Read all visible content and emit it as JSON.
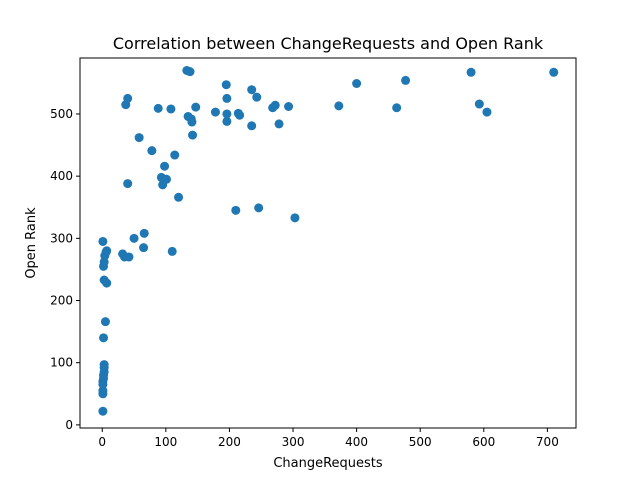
{
  "chart_data": {
    "type": "scatter",
    "title": "Correlation between ChangeRequests and Open Rank",
    "xlabel": "ChangeRequests",
    "ylabel": "Open Rank",
    "xlim": [
      -35,
      745
    ],
    "ylim": [
      -5,
      590
    ],
    "xticks": [
      0,
      100,
      200,
      300,
      400,
      500,
      600,
      700
    ],
    "yticks": [
      0,
      100,
      200,
      300,
      400,
      500
    ],
    "grid": false,
    "marker_color": "#1f77b4",
    "points": [
      [
        1,
        22
      ],
      [
        1,
        50
      ],
      [
        1,
        55
      ],
      [
        1,
        65
      ],
      [
        1,
        70
      ],
      [
        2,
        75
      ],
      [
        2,
        80
      ],
      [
        3,
        85
      ],
      [
        3,
        92
      ],
      [
        3,
        97
      ],
      [
        2,
        140
      ],
      [
        5,
        166
      ],
      [
        3,
        233
      ],
      [
        7,
        228
      ],
      [
        2,
        255
      ],
      [
        3,
        262
      ],
      [
        4,
        272
      ],
      [
        6,
        278
      ],
      [
        7,
        280
      ],
      [
        1,
        295
      ],
      [
        32,
        275
      ],
      [
        35,
        270
      ],
      [
        42,
        270
      ],
      [
        50,
        300
      ],
      [
        65,
        285
      ],
      [
        66,
        308
      ],
      [
        110,
        279
      ],
      [
        37,
        515
      ],
      [
        40,
        525
      ],
      [
        40,
        388
      ],
      [
        58,
        462
      ],
      [
        78,
        441
      ],
      [
        88,
        509
      ],
      [
        93,
        398
      ],
      [
        95,
        386
      ],
      [
        98,
        416
      ],
      [
        101,
        395
      ],
      [
        108,
        508
      ],
      [
        114,
        434
      ],
      [
        120,
        366
      ],
      [
        133,
        570
      ],
      [
        138,
        568
      ],
      [
        135,
        496
      ],
      [
        140,
        492
      ],
      [
        141,
        487
      ],
      [
        142,
        466
      ],
      [
        147,
        511
      ],
      [
        178,
        503
      ],
      [
        195,
        547
      ],
      [
        196,
        525
      ],
      [
        196,
        500
      ],
      [
        196,
        488
      ],
      [
        210,
        345
      ],
      [
        214,
        501
      ],
      [
        216,
        498
      ],
      [
        235,
        539
      ],
      [
        235,
        481
      ],
      [
        243,
        527
      ],
      [
        246,
        349
      ],
      [
        268,
        510
      ],
      [
        272,
        514
      ],
      [
        278,
        484
      ],
      [
        293,
        512
      ],
      [
        303,
        333
      ],
      [
        372,
        513
      ],
      [
        400,
        549
      ],
      [
        463,
        510
      ],
      [
        477,
        554
      ],
      [
        580,
        567
      ],
      [
        593,
        516
      ],
      [
        605,
        503
      ],
      [
        710,
        567
      ]
    ]
  }
}
